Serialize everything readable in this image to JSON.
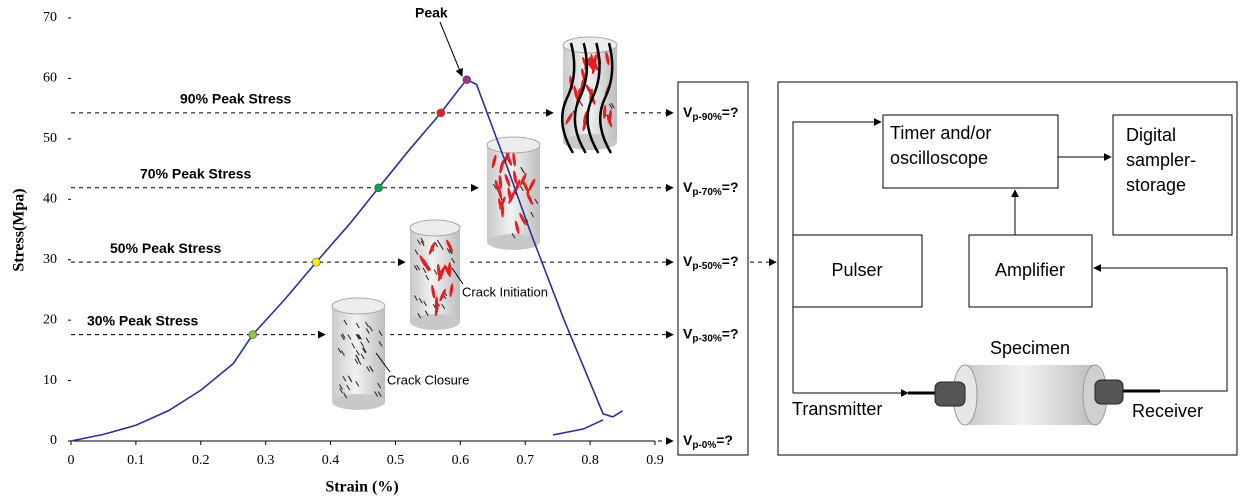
{
  "chart_data": {
    "type": "line",
    "xlabel": "Strain (%)",
    "ylabel": "Stress(Mpa)",
    "xlim": [
      0,
      0.9
    ],
    "xticks": [
      0,
      0.1,
      0.2,
      0.3,
      0.4,
      0.5,
      0.6,
      0.7,
      0.8,
      0.9
    ],
    "ylim": [
      0,
      70
    ],
    "yticks": [
      0,
      10,
      20,
      30,
      40,
      50,
      60,
      70
    ],
    "series": [
      {
        "color": "#2e3192",
        "x": [
          0,
          0.05,
          0.1,
          0.15,
          0.2,
          0.25,
          0.28,
          0.33,
          0.378,
          0.43,
          0.474,
          0.52,
          0.57,
          0.6,
          0.61,
          0.625,
          0.67,
          0.71,
          0.76,
          0.82,
          0.835,
          0.85,
          null,
          0.743,
          0.79,
          0.82
        ],
        "values": [
          0,
          1.1,
          2.6,
          5,
          8.4,
          12.8,
          17.6,
          23.5,
          29.6,
          36,
          41.9,
          48,
          54.3,
          58.5,
          59.8,
          59,
          46,
          34,
          20,
          4.5,
          4,
          5,
          null,
          1,
          2,
          3.5
        ]
      }
    ],
    "markers": {
      "x": [
        0.28,
        0.378,
        0.474,
        0.57,
        0.61
      ],
      "values": [
        17.6,
        29.6,
        41.9,
        54.3,
        59.8
      ],
      "colors": [
        "#8dc63f",
        "#fff200",
        "#00a651",
        "#ed1c24",
        "#a0308a"
      ]
    },
    "level_labels": [
      "30% Peak Stress",
      "50% Peak Stress",
      "70% Peak Stress",
      "90% Peak Stress"
    ],
    "peak_label": "Peak",
    "crack_labels": [
      "Crack Closure",
      "Crack Initiation"
    ]
  },
  "diagram": {
    "v_labels": [
      {
        "main": "V",
        "sub": "p-30%",
        "tail": "=?"
      },
      {
        "main": "V",
        "sub": "p-50%",
        "tail": "=?"
      },
      {
        "main": "V",
        "sub": "p-70%",
        "tail": "=?"
      },
      {
        "main": "V",
        "sub": "p-90%",
        "tail": "=?"
      },
      {
        "main": "V",
        "sub": "p-0%",
        "tail": "=?"
      }
    ],
    "timer": [
      "Timer and/or",
      "oscilloscope"
    ],
    "sampler": [
      "Digital",
      "sampler-",
      "storage"
    ],
    "pulser": "Pulser",
    "amplifier": "Amplifier",
    "specimen": "Specimen",
    "transmitter": "Transmitter",
    "receiver": "Receiver"
  }
}
